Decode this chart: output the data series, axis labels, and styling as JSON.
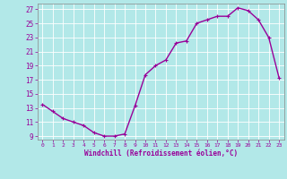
{
  "x": [
    0,
    1,
    2,
    3,
    4,
    5,
    6,
    7,
    8,
    9,
    10,
    11,
    12,
    13,
    14,
    15,
    16,
    17,
    18,
    19,
    20,
    21,
    22,
    23
  ],
  "y": [
    13.5,
    12.5,
    11.5,
    11.0,
    10.5,
    9.5,
    9.0,
    9.0,
    9.3,
    13.3,
    17.7,
    19.0,
    19.8,
    22.2,
    22.5,
    25.0,
    25.5,
    26.0,
    26.0,
    27.2,
    26.8,
    25.5,
    23.0,
    17.3
  ],
  "line_color": "#990099",
  "bg_color": "#b2e8e8",
  "grid_color": "#c8c8c8",
  "xlabel": "Windchill (Refroidissement éolien,°C)",
  "xlabel_color": "#990099",
  "tick_color": "#990099",
  "yticks": [
    9,
    11,
    13,
    15,
    17,
    19,
    21,
    23,
    25,
    27
  ],
  "xticks": [
    0,
    1,
    2,
    3,
    4,
    5,
    6,
    7,
    8,
    9,
    10,
    11,
    12,
    13,
    14,
    15,
    16,
    17,
    18,
    19,
    20,
    21,
    22,
    23
  ],
  "marker": "+",
  "marker_size": 3.5,
  "line_width": 1.0
}
